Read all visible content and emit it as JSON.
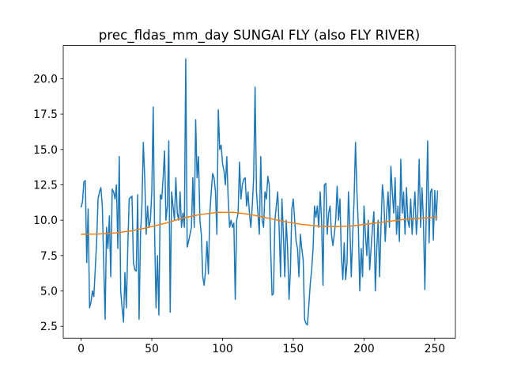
{
  "chart_data": {
    "type": "line",
    "title": "prec_fldas_mm_day SUNGAI FLY (also FLY RIVER)",
    "x": [
      0,
      1,
      2,
      3,
      4,
      5,
      6,
      7,
      8,
      9,
      10,
      11,
      12,
      13,
      14,
      15,
      16,
      17,
      18,
      19,
      20,
      21,
      22,
      23,
      24,
      25,
      26,
      27,
      28,
      29,
      30,
      31,
      32,
      33,
      34,
      35,
      36,
      37,
      38,
      39,
      40,
      41,
      42,
      43,
      44,
      45,
      46,
      47,
      48,
      49,
      50,
      51,
      52,
      53,
      54,
      55,
      56,
      57,
      58,
      59,
      60,
      61,
      62,
      63,
      64,
      65,
      66,
      67,
      68,
      69,
      70,
      71,
      72,
      73,
      74,
      75,
      76,
      77,
      78,
      79,
      80,
      81,
      82,
      83,
      84,
      85,
      86,
      87,
      88,
      89,
      90,
      91,
      92,
      93,
      94,
      95,
      96,
      97,
      98,
      99,
      100,
      101,
      102,
      103,
      104,
      105,
      106,
      107,
      108,
      109,
      110,
      111,
      112,
      113,
      114,
      115,
      116,
      117,
      118,
      119,
      120,
      121,
      122,
      123,
      124,
      125,
      126,
      127,
      128,
      129,
      130,
      131,
      132,
      133,
      134,
      135,
      136,
      137,
      138,
      139,
      140,
      141,
      142,
      143,
      144,
      145,
      146,
      147,
      148,
      149,
      150,
      151,
      152,
      153,
      154,
      155,
      156,
      157,
      158,
      159,
      160,
      161,
      162,
      163,
      164,
      165,
      166,
      167,
      168,
      169,
      170,
      171,
      172,
      173,
      174,
      175,
      176,
      177,
      178,
      179,
      180,
      181,
      182,
      183,
      184,
      185,
      186,
      187,
      188,
      189,
      190,
      191,
      192,
      193,
      194,
      195,
      196,
      197,
      198,
      199,
      200,
      201,
      202,
      203,
      204,
      205,
      206,
      207,
      208,
      209,
      210,
      211,
      212,
      213,
      214,
      215,
      216,
      217,
      218,
      219,
      220,
      221,
      222,
      223,
      224,
      225,
      226,
      227,
      228,
      229,
      230,
      231,
      232,
      233,
      234,
      235,
      236,
      237,
      238,
      239,
      240,
      241,
      242,
      243,
      244,
      245,
      246,
      247,
      248,
      249,
      250,
      251,
      252
    ],
    "series": [
      {
        "color": "#1f77b4",
        "values": [
          10.9,
          11.3,
          12.7,
          12.8,
          7.0,
          10.8,
          3.8,
          4.2,
          5.0,
          4.6,
          6.5,
          8.5,
          11.5,
          12.0,
          12.3,
          11.0,
          7.0,
          3.0,
          9.5,
          8.0,
          10.3,
          6.0,
          12.2,
          12.0,
          11.5,
          12.5,
          8.0,
          14.5,
          5.0,
          3.8,
          2.8,
          6.3,
          3.8,
          8.0,
          11.5,
          11.6,
          11.7,
          7.0,
          6.5,
          6.4,
          11.8,
          3.0,
          9.0,
          11.0,
          15.5,
          13.0,
          9.0,
          11.0,
          9.5,
          10.0,
          12.0,
          18.0,
          9.0,
          3.8,
          7.5,
          3.3,
          11.8,
          11.5,
          13.0,
          14.9,
          10.0,
          11.0,
          15.6,
          3.5,
          12.0,
          11.0,
          10.0,
          13.0,
          10.5,
          10.0,
          12.0,
          9.5,
          10.5,
          9.5,
          21.4,
          8.1,
          8.5,
          9.0,
          9.5,
          13.0,
          9.5,
          17.1,
          13.0,
          14.5,
          10.0,
          9.0,
          6.0,
          5.4,
          6.5,
          8.5,
          6.2,
          10.5,
          12.0,
          13.3,
          13.0,
          12.0,
          9.0,
          17.8,
          15.0,
          15.3,
          14.0,
          13.5,
          12.5,
          14.5,
          11.5,
          9.5,
          10.0,
          9.5,
          9.8,
          4.4,
          10.0,
          10.5,
          14.1,
          11.5,
          12.5,
          12.9,
          13.0,
          11.0,
          12.0,
          10.5,
          9.5,
          11.0,
          13.0,
          19.4,
          12.0,
          10.5,
          9.0,
          14.5,
          10.0,
          9.5,
          12.0,
          11.5,
          13.1,
          12.5,
          8.0,
          4.7,
          4.8,
          10.0,
          11.0,
          12.0,
          9.5,
          6.0,
          11.5,
          9.0,
          6.0,
          10.0,
          8.0,
          4.4,
          6.5,
          10.8,
          11.5,
          10.0,
          8.5,
          8.0,
          6.0,
          9.0,
          8.0,
          7.2,
          3.0,
          2.7,
          2.6,
          4.0,
          5.5,
          6.5,
          8.0,
          11.0,
          10.2,
          11.0,
          9.5,
          12.0,
          10.0,
          5.4,
          12.5,
          12.6,
          9.0,
          10.5,
          11.0,
          9.0,
          8.2,
          9.0,
          10.0,
          12.4,
          10.0,
          11.5,
          7.5,
          5.8,
          8.4,
          5.8,
          7.0,
          12.0,
          9.5,
          6.0,
          9.0,
          11.5,
          15.5,
          12.0,
          9.5,
          5.0,
          8.0,
          6.0,
          11.0,
          9.0,
          7.5,
          10.0,
          6.5,
          8.0,
          9.5,
          10.6,
          5.0,
          8.0,
          10.0,
          6.0,
          9.5,
          12.5,
          11.5,
          8.5,
          10.5,
          12.0,
          9.5,
          13.8,
          12.0,
          10.5,
          13.0,
          9.0,
          11.0,
          8.5,
          14.3,
          10.5,
          12.0,
          9.0,
          12.3,
          10.0,
          9.5,
          11.5,
          9.0,
          10.5,
          12.0,
          9.0,
          10.5,
          14.3,
          9.5,
          12.3,
          10.0,
          5.1,
          10.5,
          15.6,
          8.4,
          12.0,
          12.2,
          8.6,
          12.1,
          10.0,
          12.1
        ]
      },
      {
        "color": "#ff7f0e",
        "x": [
          0,
          12,
          24,
          36,
          48,
          60,
          72,
          84,
          96,
          108,
          120,
          132,
          144,
          156,
          168,
          180,
          192,
          204,
          216,
          228,
          240,
          252
        ],
        "values": [
          9.0,
          9.02,
          9.1,
          9.25,
          9.5,
          9.8,
          10.15,
          10.4,
          10.55,
          10.55,
          10.4,
          10.15,
          9.9,
          9.7,
          9.58,
          9.55,
          9.6,
          9.75,
          9.9,
          10.05,
          10.15,
          10.2
        ]
      }
    ],
    "xlim": [
      -12.6,
      264.6
    ],
    "xticks": [
      0,
      50,
      100,
      150,
      200,
      250
    ],
    "ylim": [
      1.66,
      22.34
    ],
    "yticks": [
      2.5,
      {
        "value": 5,
        "label": "5.0"
      },
      7.5,
      {
        "value": 10,
        "label": "10.0"
      },
      12.5,
      {
        "value": 15,
        "label": "15.0"
      },
      17.5,
      {
        "value": 20,
        "label": "20.0"
      }
    ]
  }
}
